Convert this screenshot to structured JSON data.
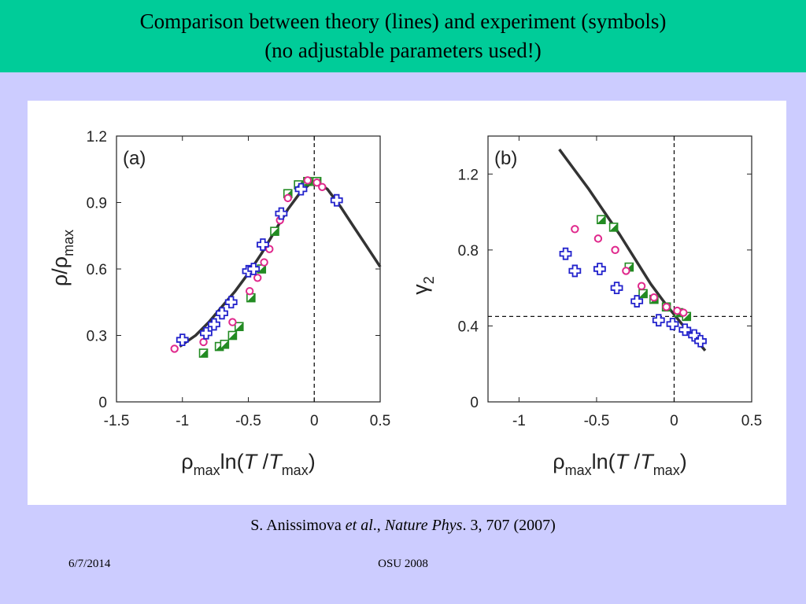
{
  "slide": {
    "title_line1": "Comparison between theory (lines) and experiment (symbols)",
    "title_line2": "(no adjustable parameters used!)",
    "citation": {
      "author": "S. Anissimova ",
      "etal": "et al",
      "sep": "., ",
      "journal": "Nature Phys",
      "rest": ". 3, 707 (2007)"
    },
    "footer_date": "6/7/2014",
    "footer_center": "OSU 2008"
  },
  "colors": {
    "title_bar": "#00cc99",
    "background": "#ccccff",
    "theory_line": "#333333",
    "green": "#228b22",
    "magenta": "#e0288c",
    "blue": "#2222cc"
  },
  "chart_data": [
    {
      "type": "scatter",
      "panel_label": "(a)",
      "xlabel": {
        "base": "ρ",
        "sub": "max",
        "func": "ln(",
        "v1": "T",
        "slash": " /",
        "v2": "T",
        "sub2": "max",
        "close": ")"
      },
      "ylabel": {
        "base": "ρ/ρ",
        "sub": "max"
      },
      "xlim": [
        -1.5,
        0.5
      ],
      "ylim": [
        0,
        1.2
      ],
      "xticks": [
        "-1.5",
        "-1",
        "-0.5",
        "0",
        "0.5"
      ],
      "xtick_values": [
        -1.5,
        -1,
        -0.5,
        0,
        0.5
      ],
      "yticks": [
        "0",
        "0.3",
        "0.6",
        "0.9",
        "1.2"
      ],
      "ytick_values": [
        0,
        0.3,
        0.6,
        0.9,
        1.2
      ],
      "vlines": [
        0
      ],
      "hlines": [],
      "theory": {
        "x": [
          -1.02,
          -0.9,
          -0.8,
          -0.7,
          -0.6,
          -0.5,
          -0.4,
          -0.3,
          -0.2,
          -0.1,
          0,
          0.1,
          0.2,
          0.3,
          0.4,
          0.5
        ],
        "y": [
          0.25,
          0.3,
          0.36,
          0.43,
          0.5,
          0.58,
          0.67,
          0.77,
          0.87,
          0.95,
          1.0,
          0.96,
          0.88,
          0.79,
          0.7,
          0.61
        ]
      },
      "series": [
        {
          "marker": "green-square",
          "x": [
            -0.84,
            -0.72,
            -0.68,
            -0.62,
            -0.57,
            -0.48,
            -0.4,
            -0.3,
            -0.2,
            -0.12,
            -0.05,
            0.02
          ],
          "y": [
            0.22,
            0.25,
            0.26,
            0.3,
            0.34,
            0.47,
            0.6,
            0.77,
            0.94,
            0.98,
            0.995,
            0.995
          ]
        },
        {
          "marker": "magenta-circle",
          "x": [
            -1.06,
            -0.84,
            -0.62,
            -0.49,
            -0.43,
            -0.38,
            -0.34,
            -0.26,
            -0.2,
            -0.05,
            0.02,
            0.06
          ],
          "y": [
            0.24,
            0.27,
            0.36,
            0.5,
            0.56,
            0.63,
            0.69,
            0.82,
            0.92,
            1.0,
            0.99,
            0.97
          ]
        },
        {
          "marker": "blue-plus",
          "x": [
            -1.0,
            -0.82,
            -0.76,
            -0.7,
            -0.63,
            -0.5,
            -0.46,
            -0.39,
            -0.25,
            -0.1,
            0.17
          ],
          "y": [
            0.28,
            0.31,
            0.35,
            0.4,
            0.45,
            0.59,
            0.6,
            0.71,
            0.85,
            0.96,
            0.91
          ]
        }
      ]
    },
    {
      "type": "scatter",
      "panel_label": "(b)",
      "xlabel": {
        "base": "ρ",
        "sub": "max",
        "func": "ln(",
        "v1": "T",
        "slash": " /",
        "v2": "T",
        "sub2": "max",
        "close": ")"
      },
      "ylabel": {
        "base": "γ",
        "sub": "2"
      },
      "xlim": [
        -1.2,
        0.5
      ],
      "ylim": [
        0,
        1.4
      ],
      "xticks": [
        "-1",
        "-0.5",
        "0",
        "0.5"
      ],
      "xtick_values": [
        -1,
        -0.5,
        0,
        0.5
      ],
      "yticks": [
        "0",
        "0.4",
        "0.8",
        "1.2"
      ],
      "ytick_values": [
        0,
        0.4,
        0.8,
        1.2
      ],
      "vlines": [
        0
      ],
      "hlines": [
        0.45
      ],
      "theory": {
        "x": [
          -0.74,
          -0.65,
          -0.55,
          -0.45,
          -0.35,
          -0.25,
          -0.15,
          -0.05,
          0,
          0.05,
          0.1,
          0.15,
          0.2
        ],
        "y": [
          1.33,
          1.23,
          1.12,
          1.0,
          0.88,
          0.75,
          0.62,
          0.51,
          0.46,
          0.41,
          0.37,
          0.32,
          0.27
        ]
      },
      "series": [
        {
          "marker": "green-square",
          "x": [
            -0.47,
            -0.39,
            -0.29,
            -0.2,
            -0.13,
            -0.05,
            0.03,
            0.08
          ],
          "y": [
            0.96,
            0.92,
            0.71,
            0.57,
            0.54,
            0.5,
            0.47,
            0.45
          ]
        },
        {
          "marker": "magenta-circle",
          "x": [
            -0.64,
            -0.49,
            -0.38,
            -0.31,
            -0.21,
            -0.13,
            -0.05,
            0.02,
            0.06
          ],
          "y": [
            0.91,
            0.86,
            0.8,
            0.69,
            0.61,
            0.55,
            0.5,
            0.48,
            0.47
          ]
        },
        {
          "marker": "blue-plus",
          "x": [
            -0.7,
            -0.64,
            -0.48,
            -0.37,
            -0.24,
            -0.1,
            -0.01,
            0.07,
            0.13,
            0.17
          ],
          "y": [
            0.78,
            0.69,
            0.7,
            0.6,
            0.53,
            0.43,
            0.41,
            0.38,
            0.35,
            0.32
          ]
        }
      ]
    }
  ]
}
